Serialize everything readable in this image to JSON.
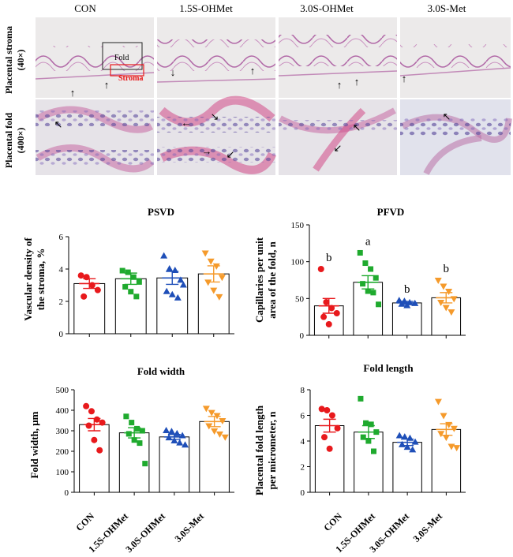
{
  "micrograph": {
    "group_labels": [
      "CON",
      "1.5S-OHMet",
      "3.0S-OHMet",
      "3.0S-Met"
    ],
    "row_labels": [
      "Placental stroma",
      "(40×)",
      "Placental  fold",
      "(400×)"
    ],
    "inset_labels": [
      "Fold",
      "Stroma"
    ]
  },
  "chart_data": [
    {
      "type": "bar",
      "title": "PSVD",
      "ylabel_lines": [
        "Vascular density of",
        "the stroma, %"
      ],
      "ylim": [
        0,
        6
      ],
      "yticks": [
        0,
        2,
        4,
        6
      ],
      "categories": [
        "CON",
        "1.5S-OHMet",
        "3.0S-OHMet",
        "3.0S-Met"
      ],
      "values": [
        3.1,
        3.4,
        3.45,
        3.7
      ],
      "sem": [
        0.3,
        0.35,
        0.4,
        0.5
      ],
      "points": [
        [
          3.6,
          3.5,
          3.0,
          2.7,
          2.3
        ],
        [
          3.9,
          3.8,
          3.5,
          3.2,
          2.9,
          2.6,
          2.3
        ],
        [
          4.8,
          4.0,
          3.9,
          3.3,
          2.6,
          2.4,
          2.2,
          3.0
        ],
        [
          5.0,
          4.5,
          4.2,
          3.5,
          3.2,
          2.7,
          2.3
        ]
      ],
      "letters": [],
      "grid": false
    },
    {
      "type": "bar",
      "title": "PFVD",
      "ylabel_lines": [
        "Capillaries per unit",
        "area of the fold, n"
      ],
      "ylim": [
        0,
        150
      ],
      "yticks": [
        0,
        50,
        100,
        150
      ],
      "categories": [
        "CON",
        "1.5S-OHMet",
        "3.0S-OHMet",
        "3.0S-Met"
      ],
      "values": [
        40,
        72,
        44,
        51
      ],
      "sem": [
        10,
        9,
        2,
        7
      ],
      "points": [
        [
          90,
          45,
          37,
          30,
          25,
          15
        ],
        [
          112,
          98,
          90,
          78,
          70,
          60,
          58,
          42
        ],
        [
          47,
          46,
          44,
          43,
          42,
          40
        ],
        [
          75,
          67,
          60,
          50,
          45,
          38,
          32
        ]
      ],
      "letters": [
        "b",
        "a",
        "b",
        "b"
      ],
      "grid": false
    },
    {
      "type": "bar",
      "title": "Fold width",
      "ylabel_lines": [
        "Fold width, μm"
      ],
      "ylim": [
        0,
        500
      ],
      "yticks": [
        0,
        100,
        200,
        300,
        400,
        500
      ],
      "categories": [
        "CON",
        "1.5S-OHMet",
        "3.0S-OHMet",
        "3.0S-Met"
      ],
      "values": [
        330,
        290,
        270,
        345
      ],
      "sem": [
        30,
        25,
        12,
        25
      ],
      "points": [
        [
          420,
          395,
          355,
          340,
          325,
          255,
          205
        ],
        [
          370,
          340,
          310,
          300,
          285,
          255,
          240,
          140
        ],
        [
          300,
          295,
          285,
          275,
          265,
          250,
          240,
          230
        ],
        [
          410,
          390,
          375,
          350,
          325,
          300,
          285,
          270
        ]
      ],
      "letters": [],
      "grid": false
    },
    {
      "type": "bar",
      "title": "Fold length",
      "ylabel_lines": [
        "Placental fold length",
        "per micrometer, n"
      ],
      "ylim": [
        0,
        8
      ],
      "yticks": [
        0,
        2,
        4,
        6,
        8
      ],
      "categories": [
        "CON",
        "1.5S-OHMet",
        "3.0S-OHMet",
        "3.0S-Met"
      ],
      "values": [
        5.2,
        4.7,
        3.9,
        4.9
      ],
      "sem": [
        0.5,
        0.5,
        0.25,
        0.45
      ],
      "points": [
        [
          6.5,
          6.4,
          6.0,
          5.0,
          4.3,
          3.4
        ],
        [
          7.3,
          5.4,
          5.3,
          4.7,
          4.3,
          4.0,
          3.2
        ],
        [
          4.4,
          4.3,
          4.2,
          3.9,
          3.7,
          3.5,
          3.3
        ],
        [
          7.1,
          6.0,
          5.3,
          5.0,
          4.6,
          4.3,
          3.6,
          3.5
        ]
      ],
      "letters": [],
      "grid": false
    }
  ],
  "x_tick_labels": [
    "CON",
    "1.5S-OHMet",
    "3.0S-OHMet",
    "3.0S-Met"
  ],
  "colors": [
    "#e8191c",
    "#1faa2e",
    "#1f4fb8",
    "#f59a2b"
  ],
  "marker_shapes": [
    "circle",
    "square",
    "triangle-up",
    "triangle-down"
  ]
}
